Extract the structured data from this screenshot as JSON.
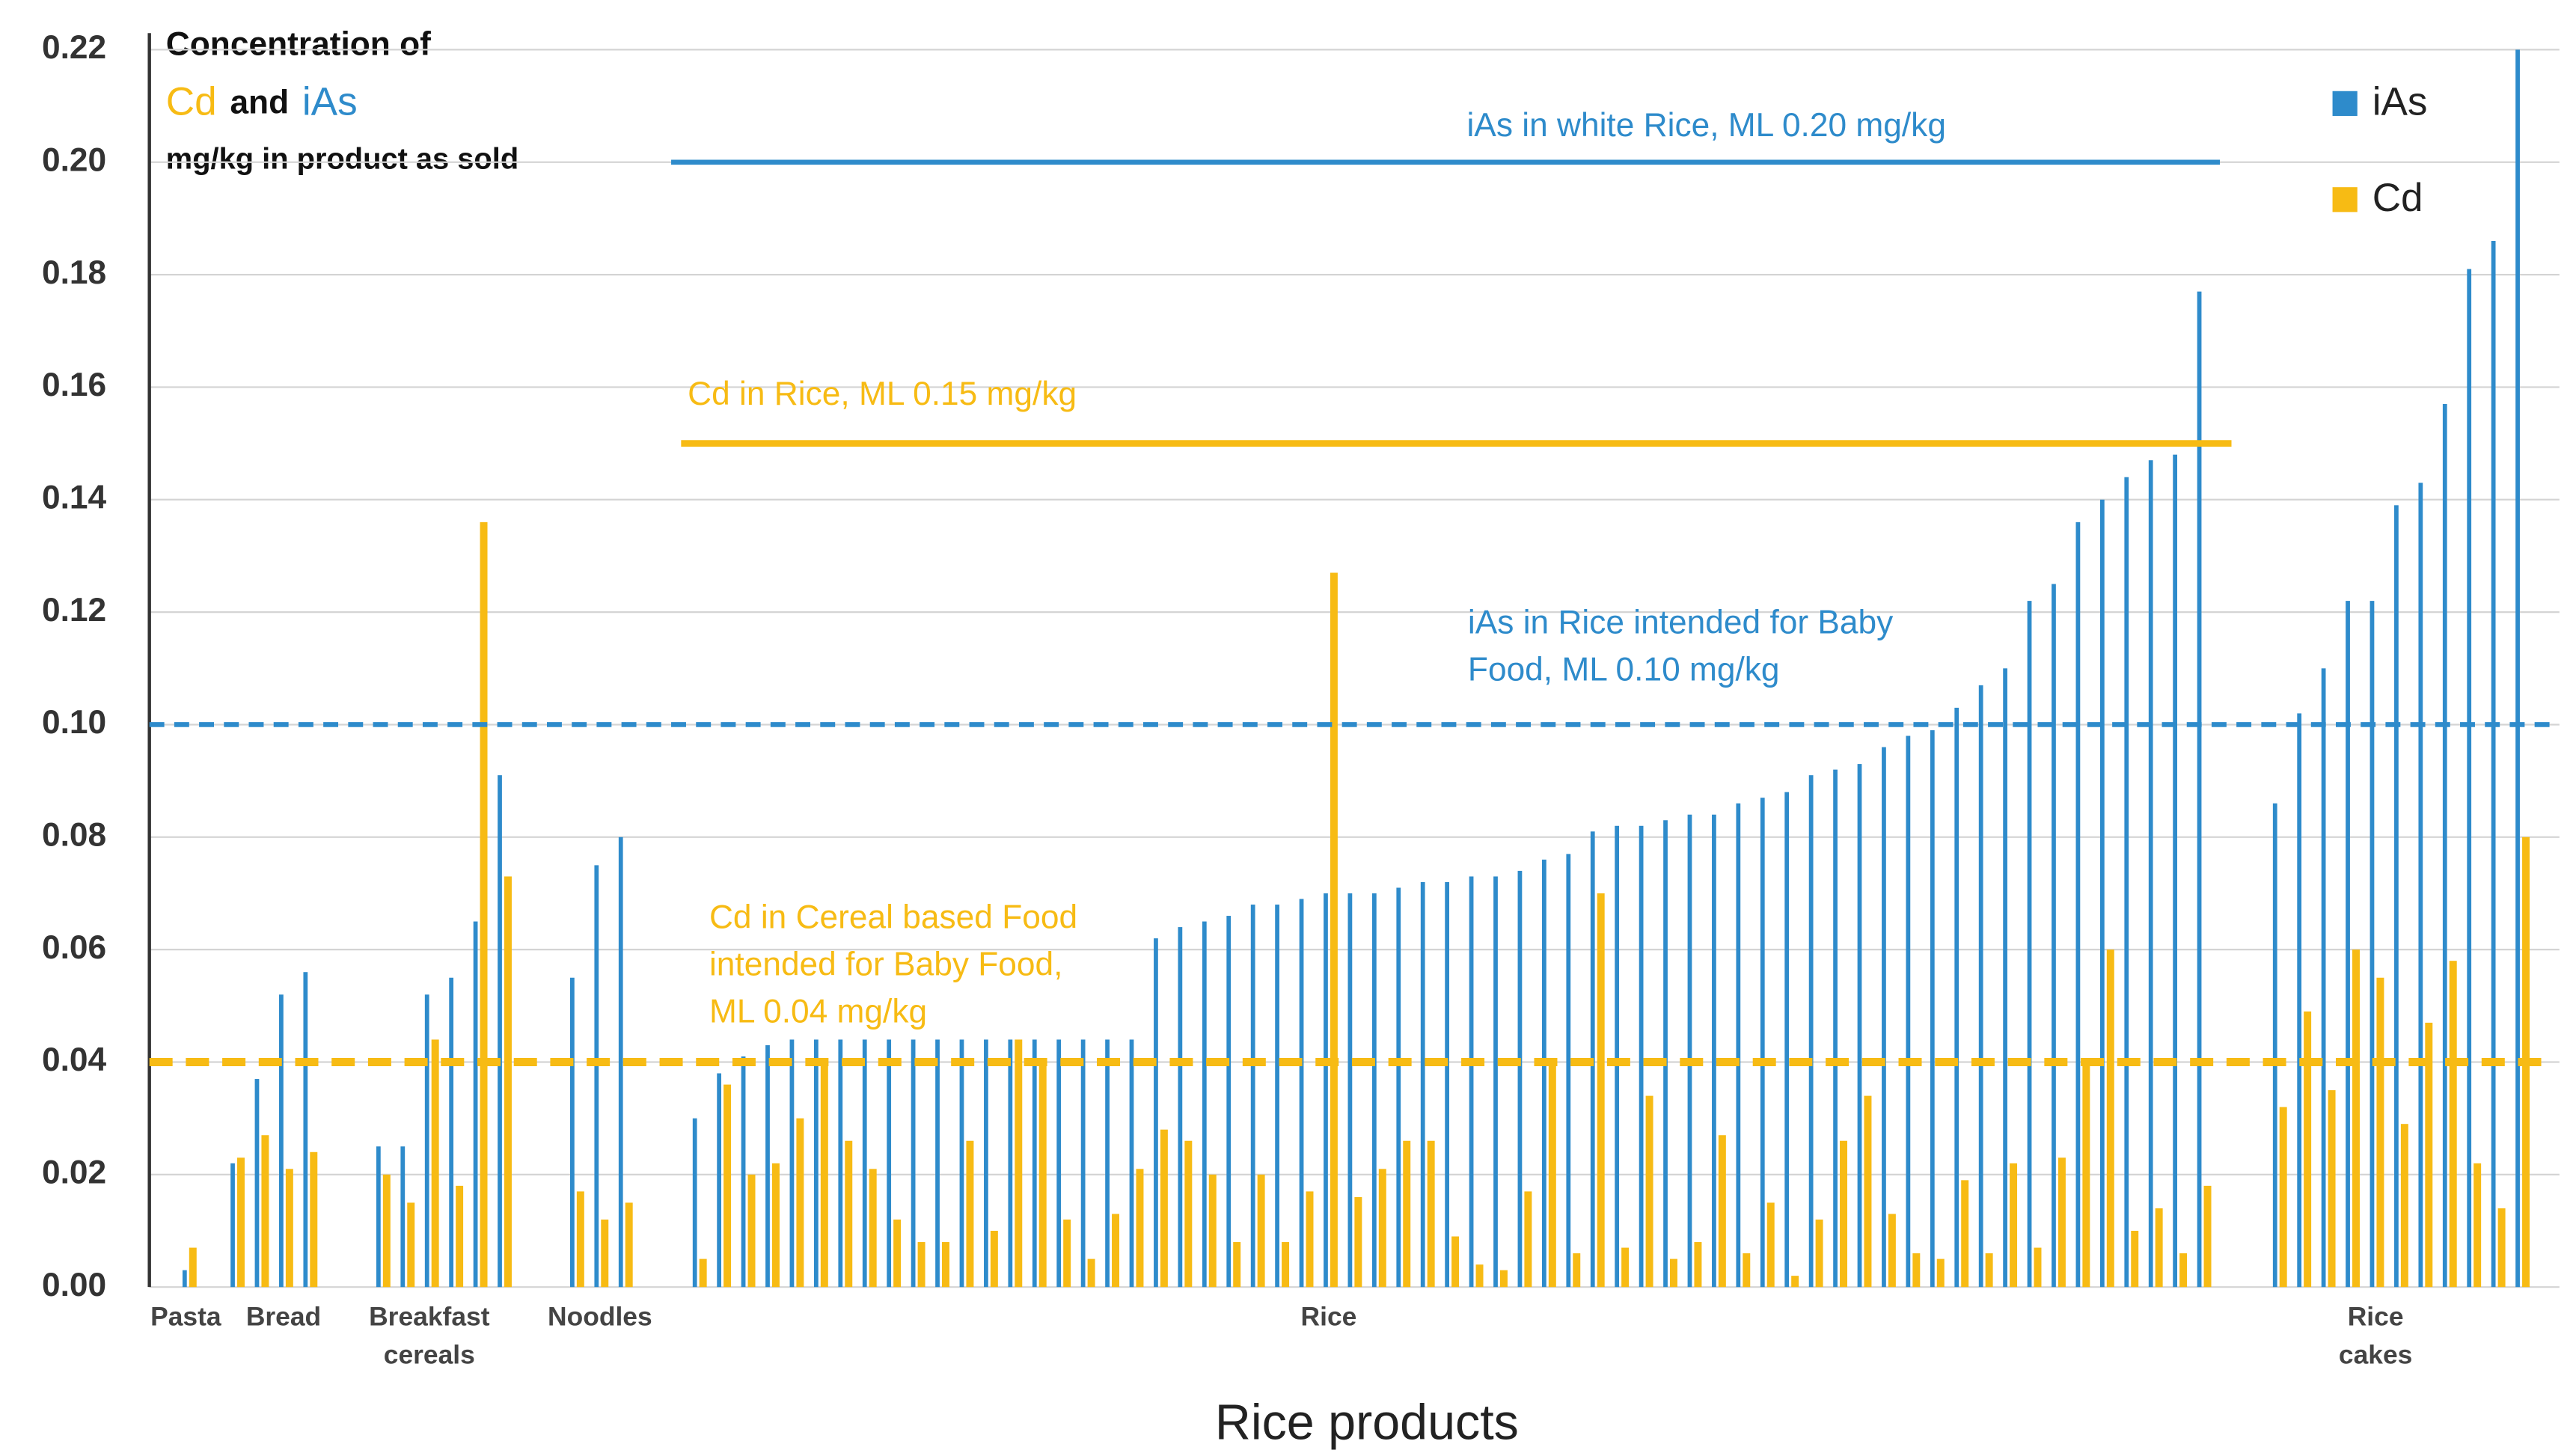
{
  "chart_data": {
    "type": "bar",
    "title": {
      "line1": "Concentration of",
      "cd": "Cd",
      "and": "and",
      "ias": "iAs",
      "line3": "mg/kg in product as sold"
    },
    "x_label": "Rice products",
    "ylim": [
      0,
      0.22
    ],
    "yticks": [
      {
        "value": 0,
        "label": "0.00"
      },
      {
        "value": 0.02,
        "label": "0.02"
      },
      {
        "value": 0.04,
        "label": "0.04"
      },
      {
        "value": 0.06,
        "label": "0.06"
      },
      {
        "value": 0.08,
        "label": "0.08"
      },
      {
        "value": 0.1,
        "label": "0.10"
      },
      {
        "value": 0.12,
        "label": "0.12"
      },
      {
        "value": 0.14,
        "label": "0.14"
      },
      {
        "value": 0.16,
        "label": "0.16"
      },
      {
        "value": 0.18,
        "label": "0.18"
      },
      {
        "value": 0.2,
        "label": "0.20"
      },
      {
        "value": 0.22,
        "label": "0.22"
      }
    ],
    "grid": true,
    "legend": "top-right",
    "series": [
      {
        "name": "iAs",
        "color": "#2e8bcb"
      },
      {
        "name": "Cd",
        "color": "#f7bb14"
      }
    ],
    "groups": [
      {
        "label": [
          "Pasta"
        ],
        "iAs": [
          0.003
        ],
        "Cd": [
          0.007
        ]
      },
      {
        "label": [
          "Bread"
        ],
        "iAs": [
          0.022,
          0.037,
          0.052,
          0.056
        ],
        "Cd": [
          0.023,
          0.027,
          0.021,
          0.024
        ]
      },
      {
        "label": [
          "Breakfast",
          "cereals"
        ],
        "iAs": [
          0.025,
          0.025,
          0.052,
          0.055,
          0.065,
          0.091
        ],
        "Cd": [
          0.02,
          0.015,
          0.044,
          0.018,
          0.136,
          0.073
        ]
      },
      {
        "label": [
          "Noodles"
        ],
        "iAs": [
          0.055,
          0.075,
          0.08
        ],
        "Cd": [
          0.017,
          0.012,
          0.015
        ]
      },
      {
        "label": [
          "Rice"
        ],
        "iAs": [
          0.03,
          0.038,
          0.041,
          0.043,
          0.044,
          0.044,
          0.044,
          0.044,
          0.044,
          0.044,
          0.044,
          0.044,
          0.044,
          0.044,
          0.044,
          0.044,
          0.044,
          0.044,
          0.044,
          0.062,
          0.064,
          0.065,
          0.066,
          0.068,
          0.068,
          0.069,
          0.07,
          0.07,
          0.07,
          0.071,
          0.072,
          0.072,
          0.073,
          0.073,
          0.074,
          0.076,
          0.077,
          0.081,
          0.082,
          0.082,
          0.083,
          0.084,
          0.084,
          0.086,
          0.087,
          0.088,
          0.091,
          0.092,
          0.093,
          0.096,
          0.098,
          0.099,
          0.103,
          0.107,
          0.11,
          0.122,
          0.125,
          0.136,
          0.14,
          0.144,
          0.147,
          0.148,
          0.177
        ],
        "Cd": [
          0.005,
          0.036,
          0.02,
          0.022,
          0.03,
          0.04,
          0.026,
          0.021,
          0.012,
          0.008,
          0.008,
          0.026,
          0.01,
          0.044,
          0.04,
          0.012,
          0.005,
          0.013,
          0.021,
          0.028,
          0.026,
          0.02,
          0.008,
          0.02,
          0.008,
          0.017,
          0.127,
          0.016,
          0.021,
          0.026,
          0.026,
          0.009,
          0.004,
          0.003,
          0.017,
          0.04,
          0.006,
          0.07,
          0.007,
          0.034,
          0.005,
          0.008,
          0.027,
          0.006,
          0.015,
          0.002,
          0.012,
          0.026,
          0.034,
          0.013,
          0.006,
          0.005,
          0.019,
          0.006,
          0.022,
          0.007,
          0.023,
          0.04,
          0.06,
          0.01,
          0.014,
          0.006,
          0.018
        ]
      },
      {
        "label": [
          "Rice",
          "cakes"
        ],
        "iAs": [
          0.086,
          0.102,
          0.11,
          0.122,
          0.122,
          0.139,
          0.143,
          0.157,
          0.181,
          0.186,
          0.22
        ],
        "Cd": [
          0.032,
          0.049,
          0.035,
          0.06,
          0.055,
          0.029,
          0.047,
          0.058,
          0.022,
          0.014,
          0.08
        ]
      }
    ],
    "reference_lines": [
      {
        "label": [
          "iAs in white Rice, ML 0.20 mg/kg"
        ],
        "value": 0.2,
        "series": "iAs",
        "dashed": false
      },
      {
        "label": [
          "Cd in Rice, ML 0.15 mg/kg"
        ],
        "value": 0.15,
        "series": "Cd",
        "dashed": false
      },
      {
        "label": [
          "iAs in Rice intended for Baby",
          "Food, ML 0.10 mg/kg"
        ],
        "value": 0.1,
        "series": "iAs",
        "dashed": true
      },
      {
        "label": [
          "Cd in Cereal based Food",
          "intended for Baby Food,",
          "ML 0.04 mg/kg"
        ],
        "value": 0.04,
        "series": "Cd",
        "dashed": true
      }
    ]
  }
}
